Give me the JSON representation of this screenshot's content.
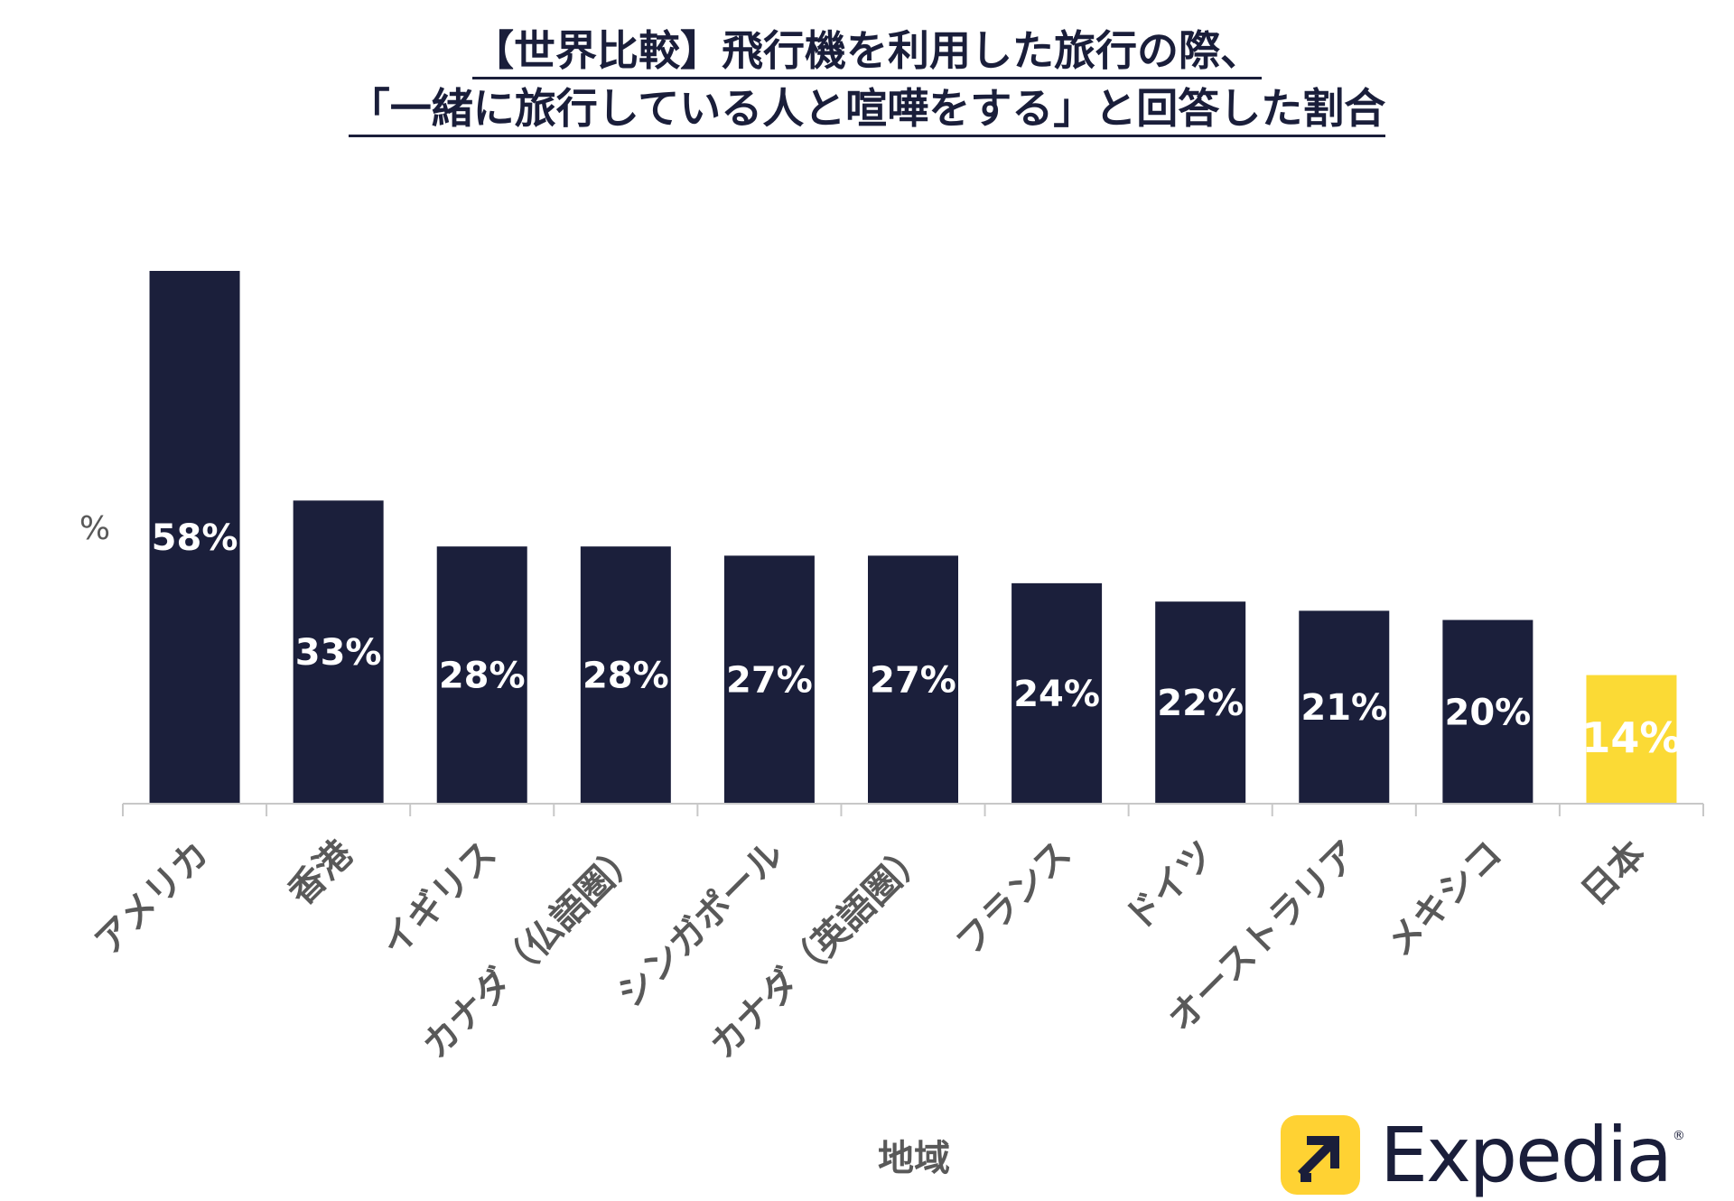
{
  "title": {
    "line1": "【世界比較】飛行機を利用した旅行の際、",
    "line2": "「一緒に旅行している人と喧嘩をする」と回答した割合"
  },
  "brand": {
    "name": "Expedia",
    "registered": "®",
    "accent_color": "#ffd233",
    "text_color": "#1a1e3a"
  },
  "chart_data": {
    "type": "bar",
    "title": "【世界比較】飛行機を利用した旅行の際、「一緒に旅行している人と喧嘩をする」と回答した割合",
    "xlabel": "地域",
    "ylabel": "%",
    "ylim": [
      0,
      58
    ],
    "grid": false,
    "legend": "none",
    "categories": [
      "アメリカ",
      "香港",
      "イギリス",
      "カナダ（仏語圏）",
      "シンガポール",
      "カナダ（英語圏）",
      "フランス",
      "ドイツ",
      "オーストラリア",
      "メキシコ",
      "日本"
    ],
    "values": [
      58,
      33,
      28,
      28,
      27,
      27,
      24,
      22,
      21,
      20,
      14
    ],
    "value_labels": [
      "58%",
      "33%",
      "28%",
      "28%",
      "27%",
      "27%",
      "24%",
      "22%",
      "21%",
      "20%",
      "14%"
    ],
    "colors": {
      "default": "#1b1f3b",
      "highlight": "#fbda35",
      "highlight_category": "日本",
      "label": "#ffffff",
      "axis": "#c8c8c8",
      "axis_text": "#595959"
    }
  }
}
